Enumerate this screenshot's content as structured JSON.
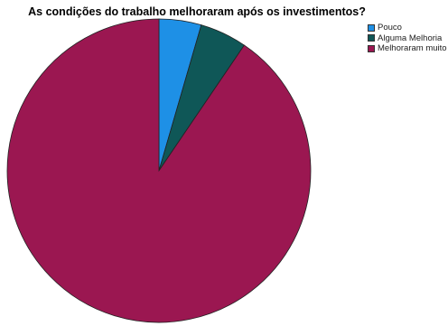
{
  "chart_data": {
    "type": "pie",
    "title": "As condições do trabalho melhoraram após os investimentos?",
    "categories": [
      "Pouco",
      "Alguma Melhoria",
      "Melhoraram muito"
    ],
    "values": [
      4.5,
      5.0,
      90.5
    ],
    "colors": [
      "#1e90e6",
      "#0f5757",
      "#9b1751"
    ],
    "legend_position": "top-right",
    "start_angle": "top",
    "direction": "clockwise"
  }
}
